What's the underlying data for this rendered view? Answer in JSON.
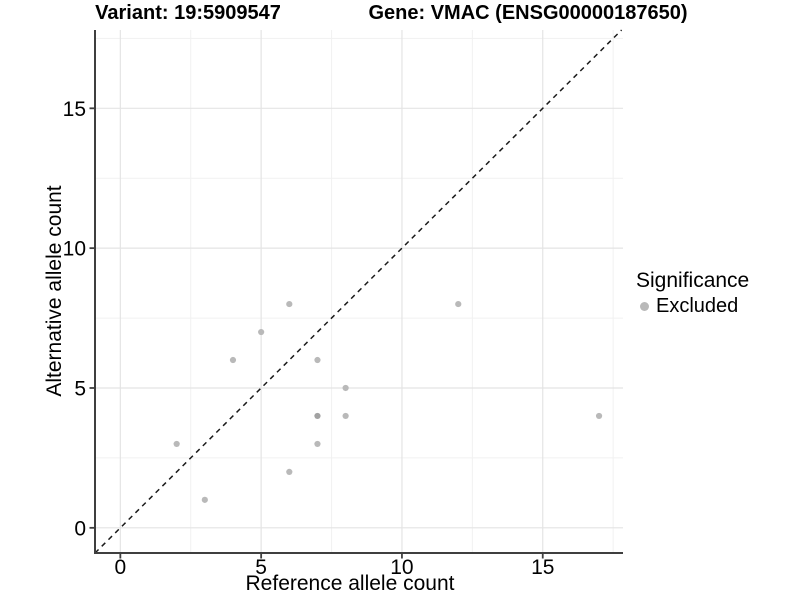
{
  "titles": {
    "left": "Variant: 19:5909547",
    "right": "Gene: VMAC (ENSG00000187650)"
  },
  "legend": {
    "title": "Significance",
    "position": "right",
    "items": [
      {
        "label": "Excluded",
        "color": "#b9b9b9"
      }
    ]
  },
  "chart_data": {
    "type": "scatter",
    "title": "Variant: 19:5909547   Gene: VMAC (ENSG00000187650)",
    "xlabel": "Reference allele count",
    "ylabel": "Alternative allele count",
    "xlim": [
      -0.9,
      17.85
    ],
    "ylim": [
      -0.9,
      17.8
    ],
    "xticks": [
      0,
      5,
      10,
      15
    ],
    "yticks": [
      0,
      5,
      10,
      15
    ],
    "minor_gridlines_x": [
      2.5,
      7.5,
      12.5,
      17.5
    ],
    "minor_gridlines_y": [
      2.5,
      7.5,
      12.5,
      17.5
    ],
    "grid": true,
    "legend_position": "right",
    "series": [
      {
        "name": "Excluded",
        "color": "#b9b9b9",
        "overlap_color": "#a2a2a2",
        "points": [
          {
            "x": 2,
            "y": 3
          },
          {
            "x": 3,
            "y": 1
          },
          {
            "x": 4,
            "y": 6
          },
          {
            "x": 5,
            "y": 7
          },
          {
            "x": 6,
            "y": 2
          },
          {
            "x": 6,
            "y": 8
          },
          {
            "x": 7,
            "y": 3
          },
          {
            "x": 7,
            "y": 4,
            "overlap": true
          },
          {
            "x": 7,
            "y": 6
          },
          {
            "x": 8,
            "y": 4
          },
          {
            "x": 8,
            "y": 5
          },
          {
            "x": 12,
            "y": 8
          },
          {
            "x": 17,
            "y": 4
          }
        ]
      }
    ],
    "identity_line": {
      "shown": true,
      "style": "dashed",
      "equation": "y = x"
    }
  }
}
